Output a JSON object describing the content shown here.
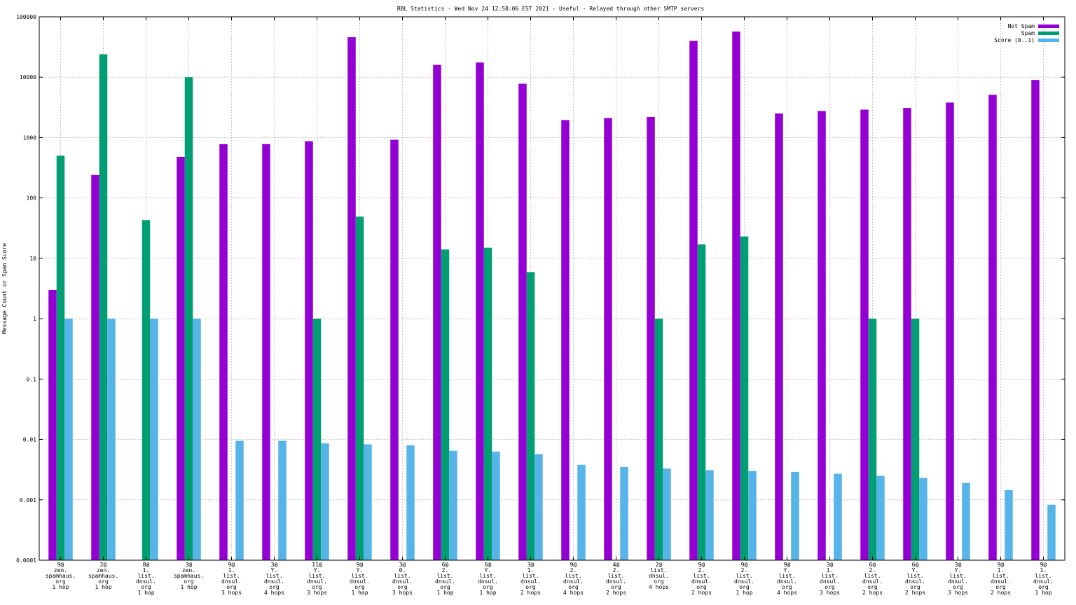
{
  "chart_data": {
    "type": "bar",
    "title": "RBL Statistics - Wed Nov 24 12:58:06 EST 2021 - Useful - Relayed through other SMTP servers",
    "xlabel": "",
    "ylabel": "Message Count or Spam Score",
    "yscale": "log",
    "ylim": [
      0.0001,
      100000
    ],
    "yticks": [
      "0.0001",
      "0.001",
      "0.01",
      "0.1",
      "1",
      "10",
      "100",
      "1000",
      "10000",
      "100000"
    ],
    "grid": true,
    "legend_position": "top-right",
    "categories": [
      [
        "9@",
        "zen.",
        "spamhaus.",
        "org",
        "1 hop"
      ],
      [
        "2@",
        "zen.",
        "spamhaus.",
        "org",
        "1 hop"
      ],
      [
        "8@",
        "1.",
        "list.",
        "dnsul.",
        "org",
        "1 hop"
      ],
      [
        "3@",
        "zen.",
        "spamhaus.",
        "org",
        "1 hop"
      ],
      [
        "9@",
        "1.",
        "list.",
        "dnsul.",
        "org",
        "3 hops"
      ],
      [
        "3@",
        "Y.",
        "list.",
        "dnsul.",
        "org",
        "4 hops"
      ],
      [
        "11@",
        "Y.",
        "list.",
        "dnsul.",
        "org",
        "3 hops"
      ],
      [
        "9@",
        "Y.",
        "list.",
        "dnsul.",
        "org",
        "1 hop"
      ],
      [
        "3@",
        "0.",
        "list.",
        "dnsul.",
        "org",
        "3 hops"
      ],
      [
        "6@",
        "2.",
        "list.",
        "dnsul.",
        "org",
        "1 hop"
      ],
      [
        "6@",
        "Y.",
        "list.",
        "dnsul.",
        "org",
        "1 hop"
      ],
      [
        "3@",
        "1.",
        "list.",
        "dnsul.",
        "org",
        "2 hops"
      ],
      [
        "9@",
        "2.",
        "list.",
        "dnsul.",
        "org",
        "4 hops"
      ],
      [
        "4@",
        "2.",
        "list.",
        "dnsul.",
        "org",
        "2 hops"
      ],
      [
        "2@",
        "list.",
        "dnsul.",
        "org",
        "4 hops"
      ],
      [
        "9@",
        "2.",
        "list.",
        "dnsul.",
        "org",
        "2 hops"
      ],
      [
        "9@",
        "2.",
        "list.",
        "dnsul.",
        "org",
        "1 hop"
      ],
      [
        "9@",
        "Y.",
        "list.",
        "dnsul.",
        "org",
        "4 hops"
      ],
      [
        "3@",
        "1.",
        "list.",
        "dnsul.",
        "org",
        "3 hops"
      ],
      [
        "6@",
        "2.",
        "list.",
        "dnsul.",
        "org",
        "2 hops"
      ],
      [
        "6@",
        "Y.",
        "list.",
        "dnsul.",
        "org",
        "2 hops"
      ],
      [
        "3@",
        "Y.",
        "list.",
        "dnsul.",
        "org",
        "3 hops"
      ],
      [
        "9@",
        "1.",
        "list.",
        "dnsul.",
        "org",
        "2 hops"
      ],
      [
        "9@",
        "1.",
        "list.",
        "dnsul.",
        "org",
        "1 hop"
      ]
    ],
    "series": [
      {
        "name": "Not Spam",
        "color": "#9400d3",
        "values": [
          3,
          240,
          null,
          480,
          780,
          780,
          870,
          46000,
          920,
          16000,
          17500,
          7800,
          1950,
          2100,
          2200,
          40000,
          57000,
          2500,
          2750,
          2900,
          3100,
          3800,
          5100,
          9000
        ]
      },
      {
        "name": "Spam",
        "color": "#009e73",
        "values": [
          500,
          24000,
          43,
          10000,
          null,
          null,
          1,
          49,
          null,
          14,
          15,
          5.9,
          null,
          null,
          1,
          17,
          23,
          null,
          null,
          1,
          1,
          null,
          null,
          null
        ]
      },
      {
        "name": "Score (0..1)",
        "color": "#56b4e9",
        "values": [
          1,
          1,
          1,
          1,
          0.0095,
          0.0095,
          0.0086,
          0.0083,
          0.008,
          0.0065,
          0.0063,
          0.0057,
          0.0038,
          0.0035,
          0.0033,
          0.0031,
          0.003,
          0.0029,
          0.0027,
          0.0025,
          0.0023,
          0.0019,
          0.00145,
          0.00083
        ]
      }
    ]
  }
}
